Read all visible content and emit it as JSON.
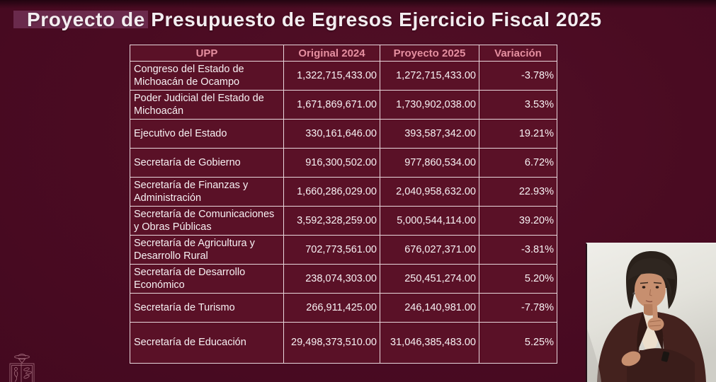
{
  "title": {
    "text": "Proyecto de Presupuesto de Egresos Ejercicio Fiscal 2025"
  },
  "table": {
    "columns": [
      "UPP",
      "Original 2024",
      "Proyecto 2025",
      "Variación"
    ],
    "rows": [
      {
        "upp": "Congreso del Estado de Michoacán de Ocampo",
        "original_2024": "1,322,715,433.00",
        "proyecto_2025": "1,272,715,433.00",
        "variacion": "-3.78%"
      },
      {
        "upp": "Poder Judicial del Estado de Michoacán",
        "original_2024": "1,671,869,671.00",
        "proyecto_2025": "1,730,902,038.00",
        "variacion": "3.53%"
      },
      {
        "upp": "Ejecutivo del Estado",
        "original_2024": "330,161,646.00",
        "proyecto_2025": "393,587,342.00",
        "variacion": "19.21%"
      },
      {
        "upp": "Secretaría de Gobierno",
        "original_2024": "916,300,502.00",
        "proyecto_2025": "977,860,534.00",
        "variacion": "6.72%"
      },
      {
        "upp": "Secretaría de Finanzas y Administración",
        "original_2024": "1,660,286,029.00",
        "proyecto_2025": "2,040,958,632.00",
        "variacion": "22.93%"
      },
      {
        "upp": "Secretaría de Comunicaciones y Obras Públicas",
        "original_2024": "3,592,328,259.00",
        "proyecto_2025": "5,000,544,114.00",
        "variacion": "39.20%"
      },
      {
        "upp": "Secretaría de Agricultura y Desarrollo Rural",
        "original_2024": "702,773,561.00",
        "proyecto_2025": "676,027,371.00",
        "variacion": "-3.81%"
      },
      {
        "upp": "Secretaría de Desarrollo Económico",
        "original_2024": "238,074,303.00",
        "proyecto_2025": "250,451,274.00",
        "variacion": "5.20%"
      },
      {
        "upp": "Secretaría de Turismo",
        "original_2024": "266,911,425.00",
        "proyecto_2025": "246,140,981.00",
        "variacion": "-7.78%"
      },
      {
        "upp": "Secretaría de Educación",
        "original_2024": "29,498,373,510.00",
        "proyecto_2025": "31,046,385,483.00",
        "variacion": "5.25%"
      }
    ]
  },
  "overlays": {
    "interpreter": "sign-language-interpreter-video",
    "emblem": "state-congress-emblem-watermark"
  },
  "colors": {
    "background": "#4a0b22",
    "cell_background": "#5a1127",
    "border": "#e9d7dc",
    "header_text": "#e58fa0",
    "body_text": "#f7f1f3",
    "title_text": "#f3edf0",
    "title_highlight": "#713053"
  }
}
